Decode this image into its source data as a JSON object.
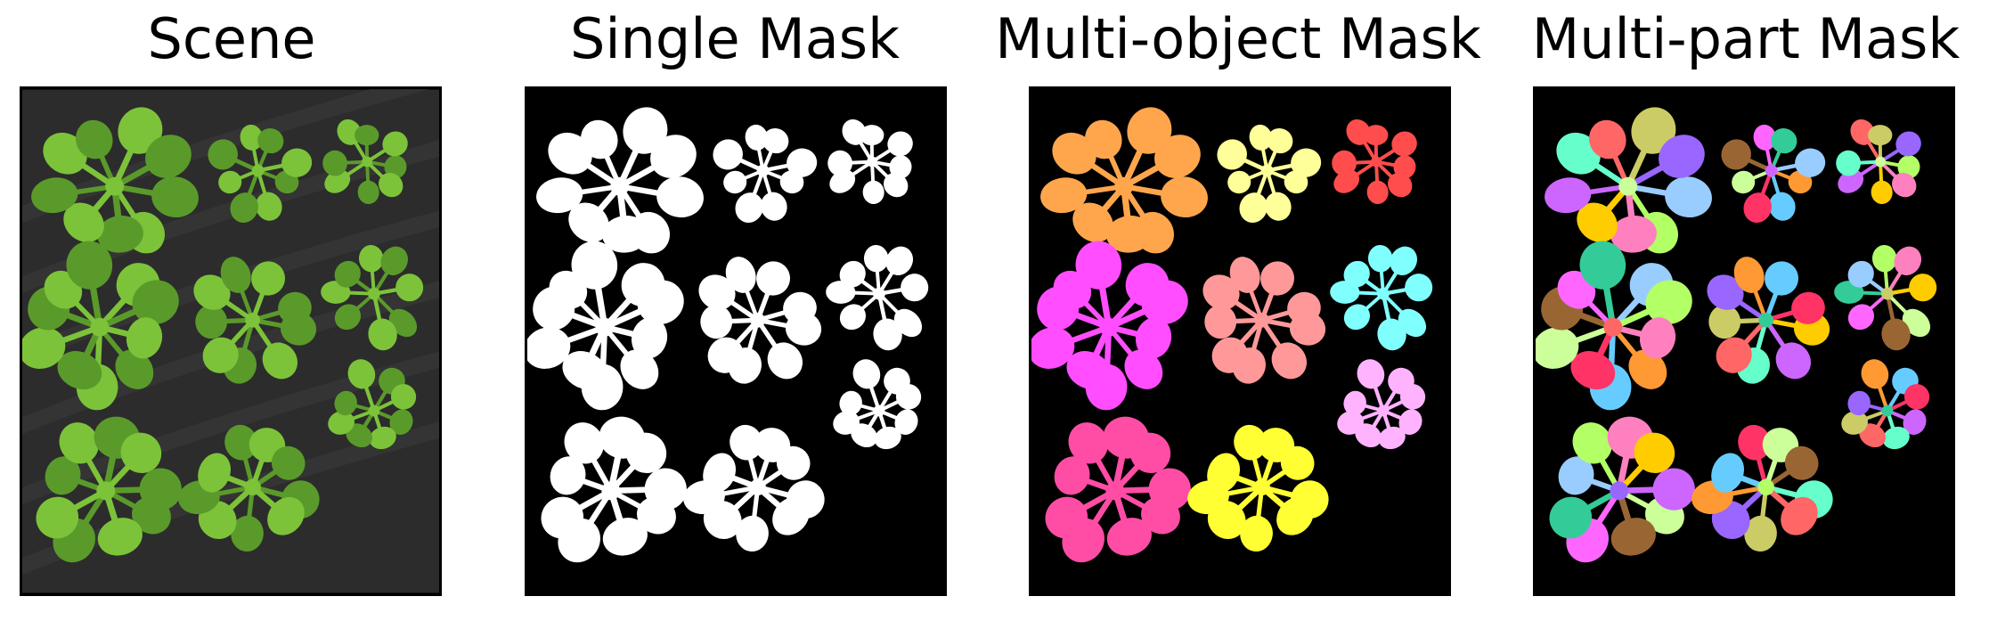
{
  "panels": [
    {
      "title": "Scene",
      "kind": "scene"
    },
    {
      "title": "Single Mask",
      "kind": "single"
    },
    {
      "title": "Multi-object Mask",
      "kind": "multiobject"
    },
    {
      "title": "Multi-part Mask",
      "kind": "multipart"
    }
  ],
  "colors": {
    "background": "#000000",
    "scene_background": "#2c2c2c",
    "leaf_green": "#7cc33a",
    "leaf_green_dark": "#5a9a2a",
    "single_mask": "#ffffff",
    "multi_object": [
      "#ffa64d",
      "#ffff99",
      "#ff4d4d",
      "#ff4dff",
      "#ff9999",
      "#80ffff",
      "#ffb3ff",
      "#ff4da6",
      "#ffff33"
    ],
    "multi_part": [
      "#99ccff",
      "#b3ff66",
      "#ff80bf",
      "#ffcc00",
      "#cc66ff",
      "#66ffcc",
      "#ff6666",
      "#cccc66",
      "#9966ff",
      "#ff9933",
      "#66ccff",
      "#ff3366",
      "#ccff99",
      "#996633",
      "#ff66ff",
      "#33cc99"
    ]
  }
}
